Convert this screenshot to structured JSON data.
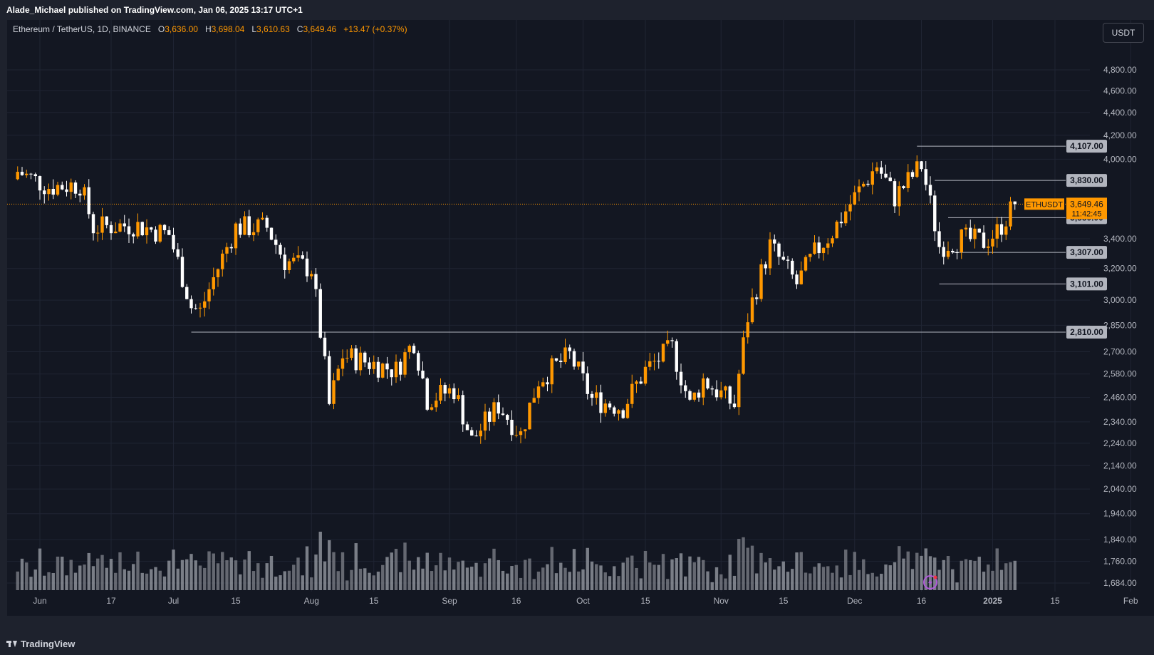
{
  "header": {
    "publisher": "Alade_Michael published on TradingView.com, Jan 06, 2025 13:17 UTC+1"
  },
  "legend": {
    "symbol": "Ethereum / TetherUS, 1D, BINANCE",
    "o_label": "O",
    "o_value": "3,636.00",
    "h_label": "H",
    "h_value": "3,698.04",
    "l_label": "L",
    "l_value": "3,610.63",
    "c_label": "C",
    "c_value": "3,649.46",
    "change": "+13.47 (+0.37%)"
  },
  "currency_button": "USDT",
  "footer": {
    "brand": "TradingView"
  },
  "colors": {
    "up": "#ff9800",
    "down": "#ffffff",
    "background": "#131722",
    "grid": "#1f2433",
    "level": "#b2b5be"
  },
  "icons": {
    "flash": "lightning-icon"
  },
  "chart_data": {
    "type": "candlestick",
    "symbol": "ETHUSDT",
    "interval": "1D",
    "last_price": "3,649.46",
    "countdown": "11:42:45",
    "y_scale": "log",
    "y_ticks": [
      "4,800.00",
      "4,600.00",
      "4,400.00",
      "4,200.00",
      "4,000.00",
      "3,400.00",
      "3,200.00",
      "3,000.00",
      "2,850.00",
      "2,700.00",
      "2,580.00",
      "2,460.00",
      "2,340.00",
      "2,240.00",
      "2,140.00",
      "2,040.00",
      "1,940.00",
      "1,840.00",
      "1,760.00",
      "1,684.00"
    ],
    "x_ticks": [
      "Jun",
      "17",
      "Jul",
      "15",
      "Aug",
      "15",
      "Sep",
      "16",
      "Oct",
      "15",
      "Nov",
      "15",
      "Dec",
      "16",
      "2025",
      "15",
      "Feb"
    ],
    "horizontal_levels": [
      4107.0,
      3830.0,
      3550.0,
      3307.0,
      3101.0,
      2810.0
    ],
    "level_labels": [
      "4,107.00",
      "3,830.00",
      "3,550.00",
      "3,307.00",
      "3,101.00",
      "2,810.00"
    ],
    "anchors": [
      {
        "date": "2024-05-27",
        "price": 3900
      },
      {
        "date": "2024-06-03",
        "price": 3780
      },
      {
        "date": "2024-06-10",
        "price": 3800
      },
      {
        "date": "2024-06-13",
        "price": 3480
      },
      {
        "date": "2024-06-22",
        "price": 3500
      },
      {
        "date": "2024-06-30",
        "price": 3430
      },
      {
        "date": "2024-07-05",
        "price": 2960
      },
      {
        "date": "2024-07-07",
        "price": 2930
      },
      {
        "date": "2024-07-15",
        "price": 3480
      },
      {
        "date": "2024-07-22",
        "price": 3480
      },
      {
        "date": "2024-07-26",
        "price": 3250
      },
      {
        "date": "2024-08-01",
        "price": 3200
      },
      {
        "date": "2024-08-05",
        "price": 2420
      },
      {
        "date": "2024-08-08",
        "price": 2680
      },
      {
        "date": "2024-08-20",
        "price": 2600
      },
      {
        "date": "2024-08-24",
        "price": 2760
      },
      {
        "date": "2024-08-27",
        "price": 2450
      },
      {
        "date": "2024-09-02",
        "price": 2500
      },
      {
        "date": "2024-09-06",
        "price": 2250
      },
      {
        "date": "2024-09-12",
        "price": 2420
      },
      {
        "date": "2024-09-17",
        "price": 2280
      },
      {
        "date": "2024-09-21",
        "price": 2550
      },
      {
        "date": "2024-09-28",
        "price": 2680
      },
      {
        "date": "2024-10-03",
        "price": 2450
      },
      {
        "date": "2024-10-10",
        "price": 2410
      },
      {
        "date": "2024-10-15",
        "price": 2600
      },
      {
        "date": "2024-10-21",
        "price": 2720
      },
      {
        "date": "2024-10-25",
        "price": 2420
      },
      {
        "date": "2024-10-28",
        "price": 2550
      },
      {
        "date": "2024-11-04",
        "price": 2420
      },
      {
        "date": "2024-11-07",
        "price": 2900
      },
      {
        "date": "2024-11-12",
        "price": 3350
      },
      {
        "date": "2024-11-18",
        "price": 3100
      },
      {
        "date": "2024-11-22",
        "price": 3300
      },
      {
        "date": "2024-11-26",
        "price": 3450
      },
      {
        "date": "2024-11-29",
        "price": 3600
      },
      {
        "date": "2024-12-06",
        "price": 3950
      },
      {
        "date": "2024-12-10",
        "price": 3700
      },
      {
        "date": "2024-12-16",
        "price": 3950
      },
      {
        "date": "2024-12-20",
        "price": 3350
      },
      {
        "date": "2024-12-25",
        "price": 3400
      },
      {
        "date": "2024-12-30",
        "price": 3380
      },
      {
        "date": "2025-01-02",
        "price": 3450
      },
      {
        "date": "2025-01-06",
        "price": 3649
      }
    ]
  }
}
